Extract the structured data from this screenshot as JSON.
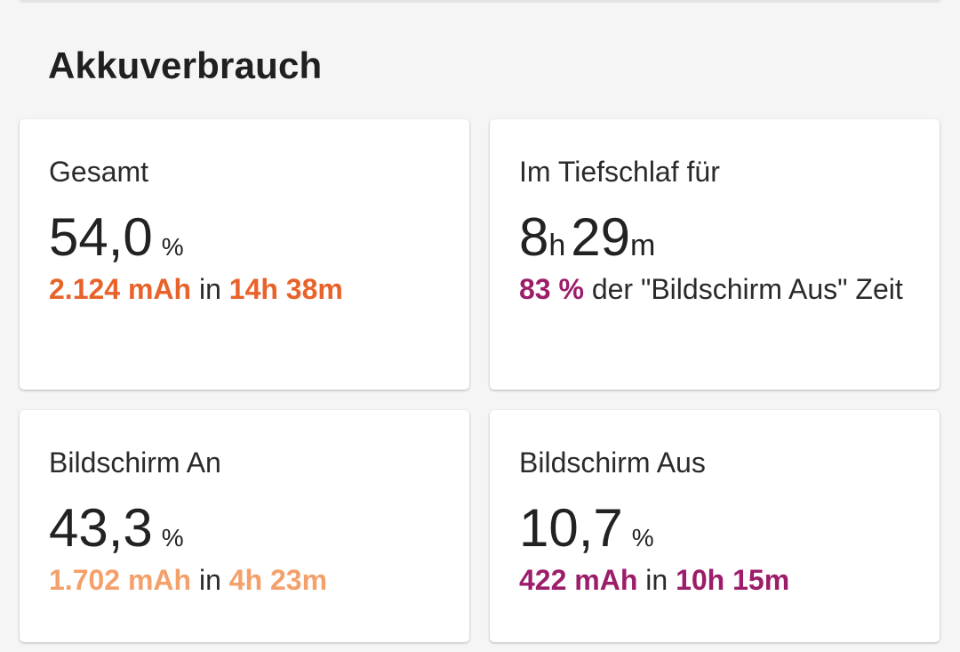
{
  "section": {
    "title": "Akkuverbrauch"
  },
  "colors": {
    "orange": "#e8632b",
    "light_orange": "#f4a06a",
    "magenta": "#9c1e6a"
  },
  "cards": {
    "gesamt": {
      "label": "Gesamt",
      "value": "54,0",
      "unit": "%",
      "mah": "2.124 mAh",
      "connector": "in",
      "duration": "14h 38m"
    },
    "tiefschlaf": {
      "label": "Im Tiefschlaf für",
      "hours": "8",
      "hours_unit": "h",
      "minutes": "29",
      "minutes_unit": "m",
      "percent": "83 %",
      "detail_text": "der \"Bildschirm Aus\" Zeit"
    },
    "screen_on": {
      "label": "Bildschirm An",
      "value": "43,3",
      "unit": "%",
      "mah": "1.702 mAh",
      "connector": "in",
      "duration": "4h 23m"
    },
    "screen_off": {
      "label": "Bildschirm Aus",
      "value": "10,7",
      "unit": "%",
      "mah": "422 mAh",
      "connector": "in",
      "duration": "10h 15m"
    }
  }
}
